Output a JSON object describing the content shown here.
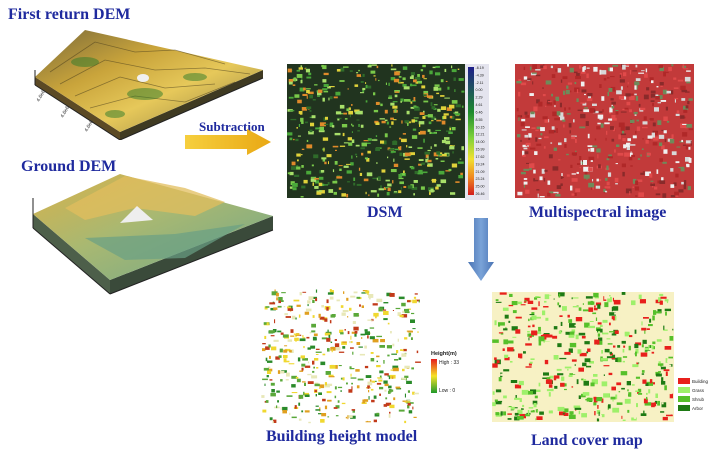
{
  "labels": {
    "first_return_dem": "First return DEM",
    "ground_dem": "Ground DEM",
    "subtraction": "Subtraction",
    "dsm": "DSM",
    "multispectral": "Multispectral image",
    "building_height_model": "Building height model",
    "land_cover_map": "Land cover map"
  },
  "height_legend": {
    "title": "Height(m)",
    "high": "High : 33",
    "low": "Low : 0"
  },
  "land_cover_legend": [
    {
      "label": "Building",
      "color": "#e8201c"
    },
    {
      "label": "Grass",
      "color": "#9ef06a"
    },
    {
      "label": "Shrub",
      "color": "#56c02a"
    },
    {
      "label": "Arbor",
      "color": "#1e7a14"
    }
  ],
  "dsm_colorbar_ticks": [
    "-6.19",
    "-4.39",
    "-2.11",
    "0.00",
    "2.29",
    "4.61",
    "6.46",
    "8.55",
    "10.15",
    "12.21",
    "14.00",
    "15.99",
    "17.62",
    "19.24",
    "21.09",
    "23.24",
    "25.00",
    "26.46"
  ],
  "colors": {
    "title_text": "#1f2a9e",
    "arrow_yellow": "#f2b81a",
    "arrow_blue": "#5b86c6"
  }
}
